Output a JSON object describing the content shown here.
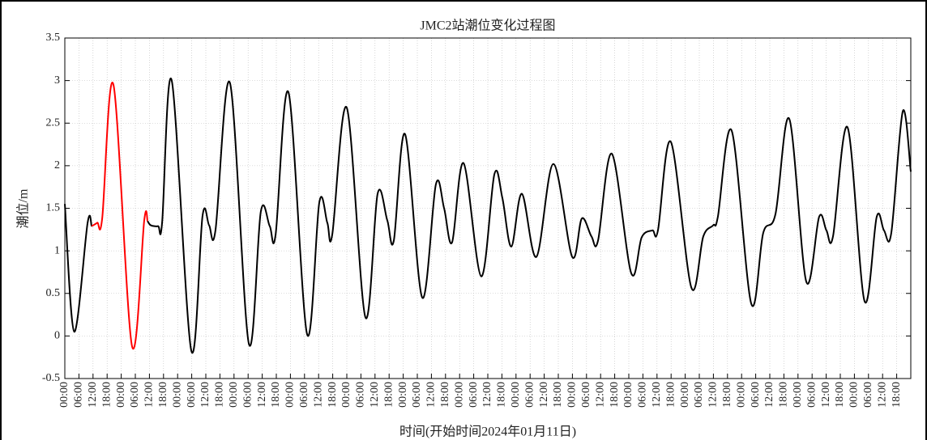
{
  "chart_data": {
    "type": "line",
    "title": "JMC2站潮位变化过程图",
    "xlabel": "时间(开始时间2024年01月11日)",
    "ylabel": "潮位/m",
    "grid": true,
    "xlim": [
      0,
      360
    ],
    "ylim": [
      -0.5,
      3.5
    ],
    "yticks": [
      -0.5,
      0,
      0.5,
      1,
      1.5,
      2,
      2.5,
      3,
      3.5
    ],
    "xticks": [
      {
        "value": 0,
        "label": "00:00"
      },
      {
        "value": 6,
        "label": "06:00"
      },
      {
        "value": 12,
        "label": "12:00"
      },
      {
        "value": 18,
        "label": "18:00"
      },
      {
        "value": 24,
        "label": "00:00"
      },
      {
        "value": 30,
        "label": "06:00"
      },
      {
        "value": 36,
        "label": "12:00"
      },
      {
        "value": 42,
        "label": "18:00"
      },
      {
        "value": 48,
        "label": "00:00"
      },
      {
        "value": 54,
        "label": "06:00"
      },
      {
        "value": 60,
        "label": "12:00"
      },
      {
        "value": 66,
        "label": "18:00"
      },
      {
        "value": 72,
        "label": "00:00"
      },
      {
        "value": 78,
        "label": "06:00"
      },
      {
        "value": 84,
        "label": "12:00"
      },
      {
        "value": 90,
        "label": "18:00"
      },
      {
        "value": 96,
        "label": "00:00"
      },
      {
        "value": 102,
        "label": "06:00"
      },
      {
        "value": 108,
        "label": "12:00"
      },
      {
        "value": 114,
        "label": "18:00"
      },
      {
        "value": 120,
        "label": "00:00"
      },
      {
        "value": 126,
        "label": "06:00"
      },
      {
        "value": 132,
        "label": "12:00"
      },
      {
        "value": 138,
        "label": "18:00"
      },
      {
        "value": 144,
        "label": "00:00"
      },
      {
        "value": 150,
        "label": "06:00"
      },
      {
        "value": 156,
        "label": "12:00"
      },
      {
        "value": 162,
        "label": "18:00"
      },
      {
        "value": 168,
        "label": "00:00"
      },
      {
        "value": 174,
        "label": "06:00"
      },
      {
        "value": 180,
        "label": "12:00"
      },
      {
        "value": 186,
        "label": "18:00"
      },
      {
        "value": 192,
        "label": "00:00"
      },
      {
        "value": 198,
        "label": "06:00"
      },
      {
        "value": 204,
        "label": "12:00"
      },
      {
        "value": 210,
        "label": "18:00"
      },
      {
        "value": 216,
        "label": "00:00"
      },
      {
        "value": 222,
        "label": "06:00"
      },
      {
        "value": 228,
        "label": "12:00"
      },
      {
        "value": 234,
        "label": "18:00"
      },
      {
        "value": 240,
        "label": "00:00"
      },
      {
        "value": 246,
        "label": "06:00"
      },
      {
        "value": 252,
        "label": "12:00"
      },
      {
        "value": 258,
        "label": "18:00"
      },
      {
        "value": 264,
        "label": "00:00"
      },
      {
        "value": 270,
        "label": "06:00"
      },
      {
        "value": 276,
        "label": "12:00"
      },
      {
        "value": 282,
        "label": "18:00"
      },
      {
        "value": 288,
        "label": "00:00"
      },
      {
        "value": 294,
        "label": "06:00"
      },
      {
        "value": 300,
        "label": "12:00"
      },
      {
        "value": 306,
        "label": "18:00"
      },
      {
        "value": 312,
        "label": "00:00"
      },
      {
        "value": 318,
        "label": "06:00"
      },
      {
        "value": 324,
        "label": "12:00"
      },
      {
        "value": 330,
        "label": "18:00"
      },
      {
        "value": 336,
        "label": "00:00"
      },
      {
        "value": 342,
        "label": "06:00"
      },
      {
        "value": 348,
        "label": "12:00"
      },
      {
        "value": 354,
        "label": "18:00"
      }
    ],
    "series": [
      {
        "color": "#000000",
        "x": [
          0,
          4,
          9.7,
          11.4,
          null,
          35.2,
          36.6,
          39.7,
          41.4,
          45.5,
          53.8,
          58.6,
          61.4,
          64.1,
          70.3,
          78.3,
          83.4,
          87.2,
          89.7,
          95.2,
          103.1,
          108.3,
          111.7,
          113.8,
          120,
          127.9,
          133.1,
          137.2,
          140,
          144.8,
          152.1,
          157.9,
          161.4,
          164.8,
          169.7,
          177.2,
          182.8,
          186.2,
          190,
          194.5,
          200.7,
          207.9,
          215.9,
          220,
          224.1,
          226.9,
          232.8,
          241,
          245.5,
          250,
          252.4,
          257.9,
          266.6,
          271.7,
          275.9,
          277.9,
          283.8,
          292.1,
          297.2,
          302.4,
          308.3,
          315.5,
          321,
          324.1,
          326.9,
          333.1,
          340.3,
          345.5,
          348.6,
          351.7,
          356.6,
          360
        ],
        "values": [
          1.55,
          0.05,
          1.33,
          1.29,
          null,
          1.35,
          1.3,
          1.29,
          1.33,
          3.0,
          -0.17,
          1.41,
          1.3,
          1.24,
          2.97,
          -0.09,
          1.46,
          1.29,
          1.19,
          2.86,
          0.02,
          1.57,
          1.33,
          1.19,
          2.68,
          0.22,
          1.67,
          1.36,
          1.12,
          2.37,
          0.45,
          1.78,
          1.5,
          1.1,
          2.03,
          0.7,
          1.9,
          1.62,
          1.05,
          1.67,
          0.93,
          2.02,
          0.93,
          1.38,
          1.17,
          1.12,
          2.14,
          0.74,
          1.16,
          1.24,
          1.24,
          2.28,
          0.57,
          1.17,
          1.3,
          1.4,
          2.41,
          0.38,
          1.21,
          1.43,
          2.55,
          0.64,
          1.4,
          1.24,
          1.17,
          2.45,
          0.41,
          1.4,
          1.24,
          1.21,
          2.64,
          1.93
        ]
      },
      {
        "color": "#ff0000",
        "x": [
          11.4,
          13.8,
          15.9,
          20.7,
          28.6,
          33.8,
          35.2
        ],
        "values": [
          1.29,
          1.33,
          1.38,
          2.95,
          -0.12,
          1.36,
          1.35
        ]
      }
    ]
  }
}
